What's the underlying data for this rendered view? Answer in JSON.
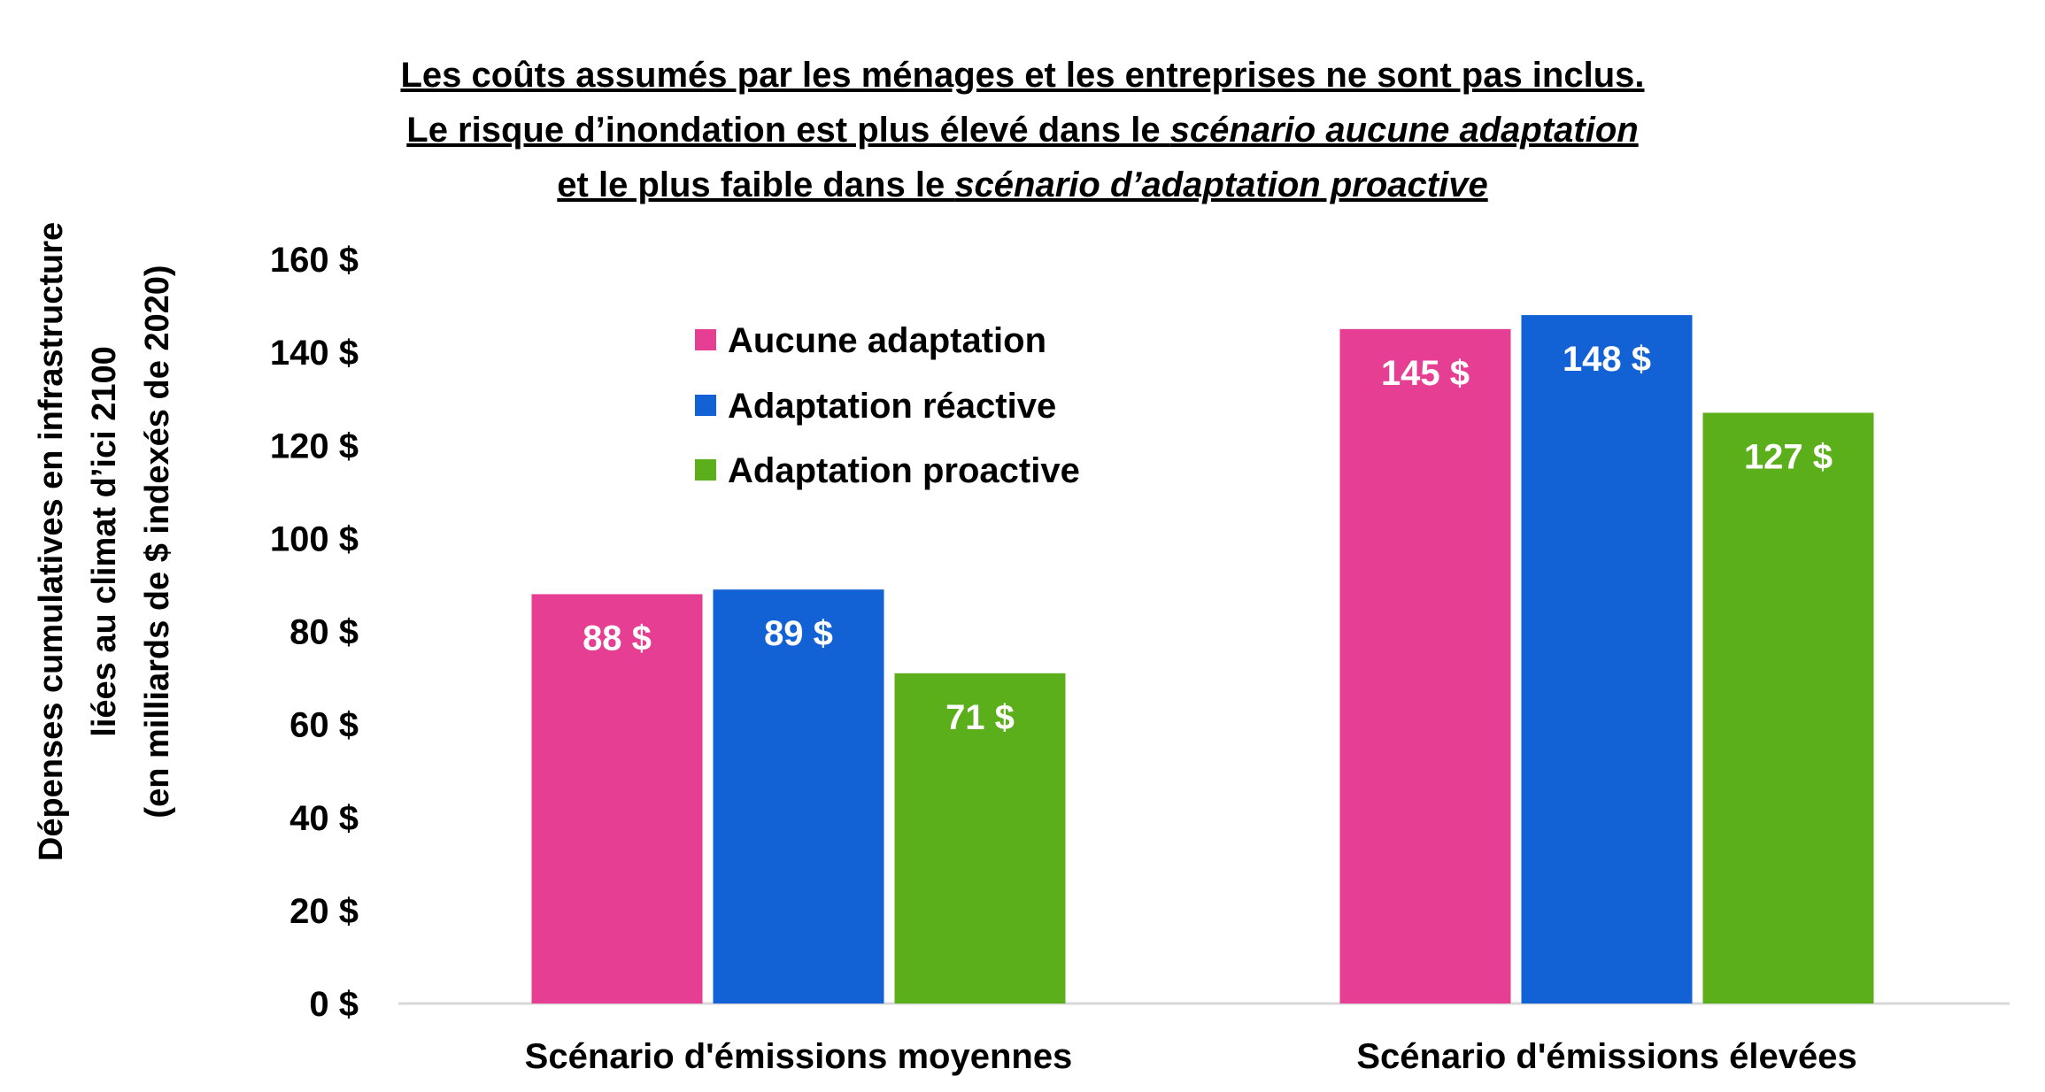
{
  "chart_data": {
    "type": "bar",
    "title_lines": [
      [
        {
          "text": "Les coûts assumés par les ménages et les entreprises ne sont pas inclus.",
          "italic": false
        }
      ],
      [
        {
          "text": "Le risque d’inondation est plus élevé dans le ",
          "italic": false
        },
        {
          "text": "scénario aucune adaptation",
          "italic": true
        }
      ],
      [
        {
          "text": "et le plus faible dans le ",
          "italic": false
        },
        {
          "text": "scénario d’adaptation proactive",
          "italic": true
        }
      ]
    ],
    "ylabel_lines": [
      "Dépenses cumulatives en infrastructure",
      "liées au climat d’ici 2100",
      "(en milliards de $ indexés de 2020)"
    ],
    "xlabel": "",
    "ylim": [
      0,
      160
    ],
    "yticks": [
      0,
      20,
      40,
      60,
      80,
      100,
      120,
      140,
      160
    ],
    "ytick_labels": [
      "0 $",
      "20 $",
      "40 $",
      "60 $",
      "80 $",
      "100 $",
      "120 $",
      "140 $",
      "160 $"
    ],
    "categories": [
      "Scénario d'émissions moyennes",
      "Scénario d'émissions élevées"
    ],
    "series": [
      {
        "name": "Aucune adaptation",
        "color": "#E53E93",
        "values": [
          88,
          145
        ],
        "labels": [
          "88 $",
          "145 $"
        ]
      },
      {
        "name": "Adaptation réactive",
        "color": "#1262D6",
        "values": [
          89,
          148
        ],
        "labels": [
          "89 $",
          "148 $"
        ]
      },
      {
        "name": "Adaptation proactive",
        "color": "#5BAF1B",
        "values": [
          71,
          127
        ],
        "labels": [
          "71 $",
          "127 $"
        ]
      }
    ],
    "legend_position": "top-left-inside",
    "grid": false
  }
}
